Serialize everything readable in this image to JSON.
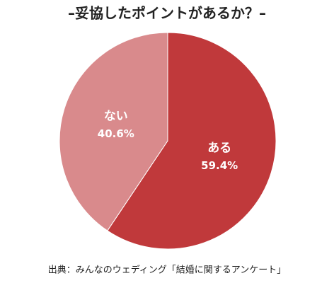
{
  "chart_data": {
    "type": "pie",
    "title": "–妥協したポイントがあるか？–",
    "categories": [
      "ある",
      "ない"
    ],
    "values": [
      59.4,
      40.6
    ],
    "value_labels": [
      "59.4%",
      "40.6%"
    ],
    "colors": [
      "#c0393b",
      "#d98a8c"
    ],
    "source": "出典：みんなのウェディング「結婚に関するアンケート」"
  }
}
